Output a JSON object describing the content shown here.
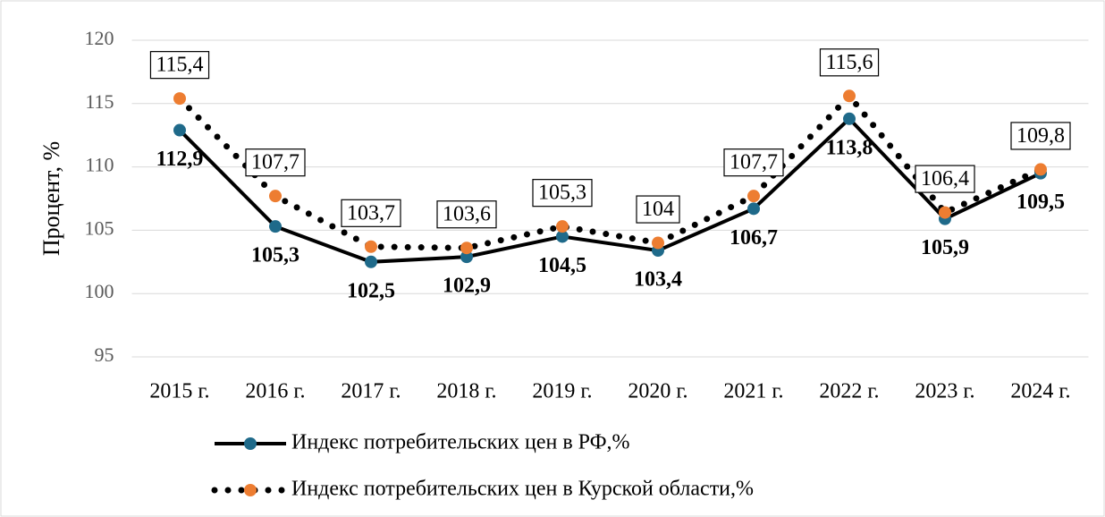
{
  "chart_data": {
    "type": "line",
    "y_label": "Процент, %",
    "categories": [
      "2015 г.",
      "2016 г.",
      "2017 г.",
      "2018 г.",
      "2019 г.",
      "2020 г.",
      "2021 г.",
      "2022 г.",
      "2023 г.",
      "2024 г."
    ],
    "series": [
      {
        "name": "Индекс потребительских цен в РФ,%",
        "color": "#1f6a8a",
        "line_color": "#000000",
        "dash": "solid",
        "values": [
          112.9,
          105.3,
          102.5,
          102.9,
          104.5,
          103.4,
          106.7,
          113.8,
          105.9,
          109.5
        ],
        "value_labels": [
          "112,9",
          "105,3",
          "102,5",
          "102,9",
          "104,5",
          "103,4",
          "106,7",
          "113,8",
          "105,9",
          "109,5"
        ]
      },
      {
        "name": "Индекс потребительских цен в Курской области,%",
        "color": "#ed7d31",
        "line_color": "#000000",
        "dash": "dotted",
        "values": [
          115.4,
          107.7,
          103.7,
          103.6,
          105.3,
          104,
          107.7,
          115.6,
          106.4,
          109.8
        ],
        "value_labels": [
          "115,4",
          "107,7",
          "103,7",
          "103,6",
          "105,3",
          "104",
          "107,7",
          "115,6",
          "106,4",
          "109,8"
        ]
      }
    ],
    "ylim": [
      95,
      120
    ],
    "yticks": [
      95,
      100,
      105,
      110,
      115,
      120
    ],
    "grid": true,
    "legend": "bottom"
  }
}
